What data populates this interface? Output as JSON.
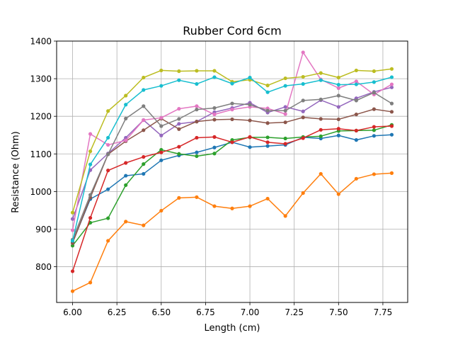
{
  "chart_data": {
    "type": "line",
    "title": "Rubber Cord 6cm",
    "xlabel": "Length (cm)",
    "ylabel": "Resistance (Ohm)",
    "xlim": [
      5.91,
      7.89
    ],
    "ylim": [
      705,
      1400
    ],
    "xticks": [
      "6.00",
      "6.25",
      "6.50",
      "6.75",
      "7.00",
      "7.25",
      "7.50",
      "7.75"
    ],
    "xtick_values": [
      6.0,
      6.25,
      6.5,
      6.75,
      7.0,
      7.25,
      7.5,
      7.75
    ],
    "yticks": [
      "800",
      "900",
      "1000",
      "1100",
      "1200",
      "1300",
      "1400"
    ],
    "ytick_values": [
      800,
      900,
      1000,
      1100,
      1200,
      1300,
      1400
    ],
    "grid": true,
    "x": [
      6.0,
      6.1,
      6.2,
      6.3,
      6.4,
      6.5,
      6.6,
      6.7,
      6.8,
      6.9,
      7.0,
      7.1,
      7.2,
      7.3,
      7.4,
      7.5,
      7.6,
      7.7,
      7.8
    ],
    "series": [
      {
        "color": "#1f77b4",
        "values": [
          865,
          980,
          1006,
          1042,
          1047,
          1083,
          1096,
          1104,
          1117,
          1131,
          1118,
          1121,
          1124,
          1144,
          1141,
          1149,
          1137,
          1148,
          1151
        ]
      },
      {
        "color": "#ff7f0e",
        "values": [
          735,
          758,
          869,
          920,
          910,
          949,
          983,
          985,
          961,
          955,
          961,
          981,
          935,
          996,
          1047,
          993,
          1034,
          1046,
          1049
        ]
      },
      {
        "color": "#2ca02c",
        "values": [
          856,
          917,
          929,
          1017,
          1073,
          1111,
          1100,
          1094,
          1101,
          1137,
          1144,
          1144,
          1141,
          1145,
          1147,
          1161,
          1162,
          1163,
          1177
        ]
      },
      {
        "color": "#d62728",
        "values": [
          788,
          930,
          1056,
          1076,
          1092,
          1104,
          1119,
          1143,
          1145,
          1131,
          1145,
          1131,
          1127,
          1142,
          1164,
          1167,
          1162,
          1172,
          1174
        ]
      },
      {
        "color": "#9467bd",
        "values": [
          927,
          1057,
          1101,
          1143,
          1190,
          1149,
          1180,
          1186,
          1211,
          1222,
          1236,
          1210,
          1225,
          1213,
          1243,
          1225,
          1248,
          1265,
          1277
        ]
      },
      {
        "color": "#8c564b",
        "values": [
          863,
          984,
          1099,
          1134,
          1163,
          1194,
          1166,
          1186,
          1191,
          1192,
          1189,
          1182,
          1184,
          1197,
          1193,
          1192,
          1205,
          1219,
          1212
        ]
      },
      {
        "color": "#e377c2",
        "values": [
          897,
          1153,
          1124,
          1136,
          1190,
          1196,
          1220,
          1227,
          1205,
          1218,
          1225,
          1221,
          1206,
          1370,
          1298,
          1275,
          1293,
          1258,
          1285
        ]
      },
      {
        "color": "#7f7f7f",
        "values": [
          872,
          991,
          1099,
          1194,
          1227,
          1174,
          1193,
          1218,
          1222,
          1234,
          1231,
          1215,
          1215,
          1242,
          1245,
          1255,
          1242,
          1263,
          1234
        ]
      },
      {
        "color": "#bcbd22",
        "values": [
          944,
          1107,
          1214,
          1255,
          1303,
          1322,
          1320,
          1321,
          1321,
          1292,
          1297,
          1282,
          1301,
          1305,
          1315,
          1303,
          1322,
          1320,
          1326
        ]
      },
      {
        "color": "#17becf",
        "values": [
          869,
          1072,
          1143,
          1231,
          1270,
          1281,
          1296,
          1286,
          1304,
          1287,
          1303,
          1264,
          1281,
          1286,
          1296,
          1284,
          1285,
          1291,
          1304
        ]
      }
    ]
  }
}
